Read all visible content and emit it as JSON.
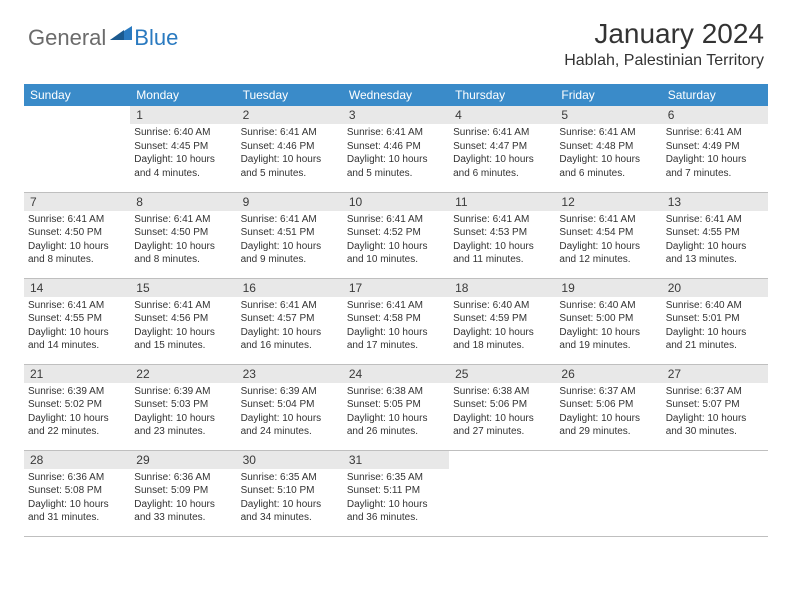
{
  "brand": {
    "part1": "General",
    "part2": "Blue"
  },
  "title": "January 2024",
  "location": "Hablah, Palestinian Territory",
  "colors": {
    "header_bg": "#3a8bc9",
    "header_text": "#ffffff",
    "daynum_bg": "#e8e8e8",
    "body_text": "#333333",
    "border": "#bfbfbf",
    "logo_gray": "#6b6b6b",
    "logo_blue": "#2a7ac0"
  },
  "headers": [
    "Sunday",
    "Monday",
    "Tuesday",
    "Wednesday",
    "Thursday",
    "Friday",
    "Saturday"
  ],
  "weeks": [
    [
      null,
      {
        "n": "1",
        "sr": "Sunrise: 6:40 AM",
        "ss": "Sunset: 4:45 PM",
        "d1": "Daylight: 10 hours",
        "d2": "and 4 minutes."
      },
      {
        "n": "2",
        "sr": "Sunrise: 6:41 AM",
        "ss": "Sunset: 4:46 PM",
        "d1": "Daylight: 10 hours",
        "d2": "and 5 minutes."
      },
      {
        "n": "3",
        "sr": "Sunrise: 6:41 AM",
        "ss": "Sunset: 4:46 PM",
        "d1": "Daylight: 10 hours",
        "d2": "and 5 minutes."
      },
      {
        "n": "4",
        "sr": "Sunrise: 6:41 AM",
        "ss": "Sunset: 4:47 PM",
        "d1": "Daylight: 10 hours",
        "d2": "and 6 minutes."
      },
      {
        "n": "5",
        "sr": "Sunrise: 6:41 AM",
        "ss": "Sunset: 4:48 PM",
        "d1": "Daylight: 10 hours",
        "d2": "and 6 minutes."
      },
      {
        "n": "6",
        "sr": "Sunrise: 6:41 AM",
        "ss": "Sunset: 4:49 PM",
        "d1": "Daylight: 10 hours",
        "d2": "and 7 minutes."
      }
    ],
    [
      {
        "n": "7",
        "sr": "Sunrise: 6:41 AM",
        "ss": "Sunset: 4:50 PM",
        "d1": "Daylight: 10 hours",
        "d2": "and 8 minutes."
      },
      {
        "n": "8",
        "sr": "Sunrise: 6:41 AM",
        "ss": "Sunset: 4:50 PM",
        "d1": "Daylight: 10 hours",
        "d2": "and 8 minutes."
      },
      {
        "n": "9",
        "sr": "Sunrise: 6:41 AM",
        "ss": "Sunset: 4:51 PM",
        "d1": "Daylight: 10 hours",
        "d2": "and 9 minutes."
      },
      {
        "n": "10",
        "sr": "Sunrise: 6:41 AM",
        "ss": "Sunset: 4:52 PM",
        "d1": "Daylight: 10 hours",
        "d2": "and 10 minutes."
      },
      {
        "n": "11",
        "sr": "Sunrise: 6:41 AM",
        "ss": "Sunset: 4:53 PM",
        "d1": "Daylight: 10 hours",
        "d2": "and 11 minutes."
      },
      {
        "n": "12",
        "sr": "Sunrise: 6:41 AM",
        "ss": "Sunset: 4:54 PM",
        "d1": "Daylight: 10 hours",
        "d2": "and 12 minutes."
      },
      {
        "n": "13",
        "sr": "Sunrise: 6:41 AM",
        "ss": "Sunset: 4:55 PM",
        "d1": "Daylight: 10 hours",
        "d2": "and 13 minutes."
      }
    ],
    [
      {
        "n": "14",
        "sr": "Sunrise: 6:41 AM",
        "ss": "Sunset: 4:55 PM",
        "d1": "Daylight: 10 hours",
        "d2": "and 14 minutes."
      },
      {
        "n": "15",
        "sr": "Sunrise: 6:41 AM",
        "ss": "Sunset: 4:56 PM",
        "d1": "Daylight: 10 hours",
        "d2": "and 15 minutes."
      },
      {
        "n": "16",
        "sr": "Sunrise: 6:41 AM",
        "ss": "Sunset: 4:57 PM",
        "d1": "Daylight: 10 hours",
        "d2": "and 16 minutes."
      },
      {
        "n": "17",
        "sr": "Sunrise: 6:41 AM",
        "ss": "Sunset: 4:58 PM",
        "d1": "Daylight: 10 hours",
        "d2": "and 17 minutes."
      },
      {
        "n": "18",
        "sr": "Sunrise: 6:40 AM",
        "ss": "Sunset: 4:59 PM",
        "d1": "Daylight: 10 hours",
        "d2": "and 18 minutes."
      },
      {
        "n": "19",
        "sr": "Sunrise: 6:40 AM",
        "ss": "Sunset: 5:00 PM",
        "d1": "Daylight: 10 hours",
        "d2": "and 19 minutes."
      },
      {
        "n": "20",
        "sr": "Sunrise: 6:40 AM",
        "ss": "Sunset: 5:01 PM",
        "d1": "Daylight: 10 hours",
        "d2": "and 21 minutes."
      }
    ],
    [
      {
        "n": "21",
        "sr": "Sunrise: 6:39 AM",
        "ss": "Sunset: 5:02 PM",
        "d1": "Daylight: 10 hours",
        "d2": "and 22 minutes."
      },
      {
        "n": "22",
        "sr": "Sunrise: 6:39 AM",
        "ss": "Sunset: 5:03 PM",
        "d1": "Daylight: 10 hours",
        "d2": "and 23 minutes."
      },
      {
        "n": "23",
        "sr": "Sunrise: 6:39 AM",
        "ss": "Sunset: 5:04 PM",
        "d1": "Daylight: 10 hours",
        "d2": "and 24 minutes."
      },
      {
        "n": "24",
        "sr": "Sunrise: 6:38 AM",
        "ss": "Sunset: 5:05 PM",
        "d1": "Daylight: 10 hours",
        "d2": "and 26 minutes."
      },
      {
        "n": "25",
        "sr": "Sunrise: 6:38 AM",
        "ss": "Sunset: 5:06 PM",
        "d1": "Daylight: 10 hours",
        "d2": "and 27 minutes."
      },
      {
        "n": "26",
        "sr": "Sunrise: 6:37 AM",
        "ss": "Sunset: 5:06 PM",
        "d1": "Daylight: 10 hours",
        "d2": "and 29 minutes."
      },
      {
        "n": "27",
        "sr": "Sunrise: 6:37 AM",
        "ss": "Sunset: 5:07 PM",
        "d1": "Daylight: 10 hours",
        "d2": "and 30 minutes."
      }
    ],
    [
      {
        "n": "28",
        "sr": "Sunrise: 6:36 AM",
        "ss": "Sunset: 5:08 PM",
        "d1": "Daylight: 10 hours",
        "d2": "and 31 minutes."
      },
      {
        "n": "29",
        "sr": "Sunrise: 6:36 AM",
        "ss": "Sunset: 5:09 PM",
        "d1": "Daylight: 10 hours",
        "d2": "and 33 minutes."
      },
      {
        "n": "30",
        "sr": "Sunrise: 6:35 AM",
        "ss": "Sunset: 5:10 PM",
        "d1": "Daylight: 10 hours",
        "d2": "and 34 minutes."
      },
      {
        "n": "31",
        "sr": "Sunrise: 6:35 AM",
        "ss": "Sunset: 5:11 PM",
        "d1": "Daylight: 10 hours",
        "d2": "and 36 minutes."
      },
      null,
      null,
      null
    ]
  ]
}
